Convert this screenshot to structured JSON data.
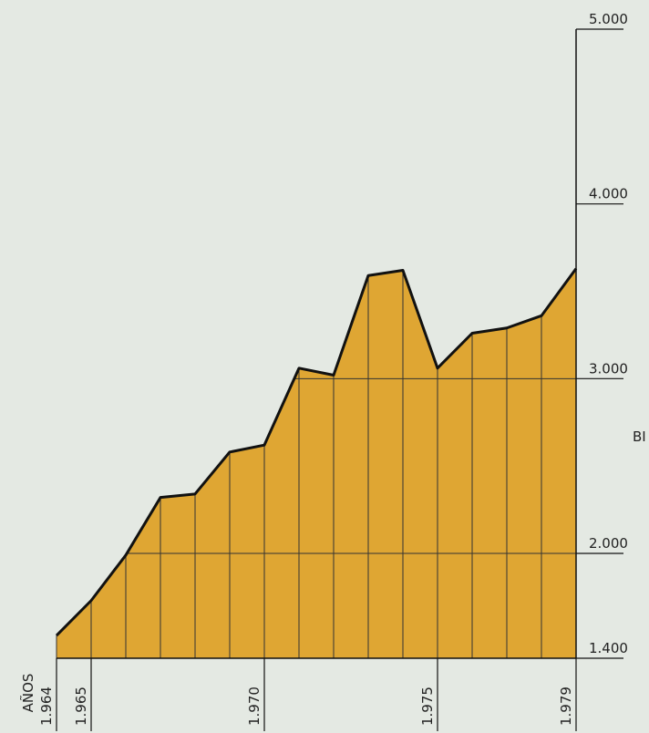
{
  "chart_data": {
    "type": "area",
    "x_label": "AÑOS",
    "y_label": "BI",
    "x": [
      1964,
      1965,
      1966,
      1967,
      1968,
      1969,
      1970,
      1971,
      1972,
      1973,
      1974,
      1975,
      1976,
      1977,
      1978,
      1979
    ],
    "values": [
      1530,
      1730,
      1990,
      2320,
      2340,
      2580,
      2620,
      3060,
      3020,
      3590,
      3620,
      3060,
      3260,
      3290,
      3360,
      3630
    ],
    "color": "#dfa633",
    "xlim": [
      1964,
      1979
    ],
    "xticks": [
      {
        "value": 1964,
        "label": "1.964"
      },
      {
        "value": 1965,
        "label": "1.965"
      },
      {
        "value": 1970,
        "label": "1.970"
      },
      {
        "value": 1975,
        "label": "1.975"
      },
      {
        "value": 1979,
        "label": "1.979"
      }
    ],
    "ylim": [
      1400,
      5000
    ],
    "yticks": [
      {
        "value": 1400,
        "label": "1.400"
      },
      {
        "value": 2000,
        "label": "2.000"
      },
      {
        "value": 3000,
        "label": "3.000"
      },
      {
        "value": 4000,
        "label": "4.000"
      },
      {
        "value": 5000,
        "label": "5.000"
      }
    ],
    "y_axis_side": "right",
    "grid": true
  }
}
